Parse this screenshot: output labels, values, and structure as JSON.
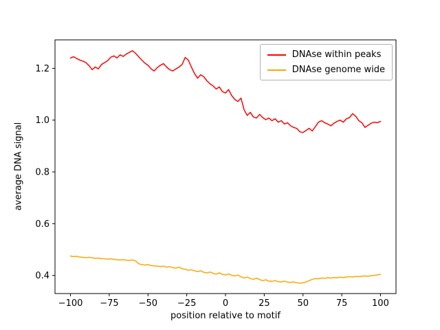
{
  "figure": {
    "background": "#ffffff",
    "xlabel": "position relative to motif",
    "ylabel": "average DNA signal"
  },
  "legend": {
    "entries": [
      {
        "label": "DNAse within peaks",
        "color": "#ff0000"
      },
      {
        "label": "DNAse genome wide",
        "color": "#ffa500"
      }
    ]
  },
  "chart_data": {
    "type": "line",
    "title": "",
    "xlabel": "position relative to motif",
    "ylabel": "average DNA signal",
    "xlim": [
      -110,
      110
    ],
    "ylim": [
      0.33,
      1.31
    ],
    "xticks": [
      -100,
      -75,
      -50,
      -25,
      0,
      25,
      50,
      75,
      100
    ],
    "yticks": [
      0.4,
      0.6,
      0.8,
      1.0,
      1.2
    ],
    "grid": false,
    "legend_position": "upper right",
    "x": [
      -100,
      -98,
      -96,
      -94,
      -92,
      -90,
      -88,
      -86,
      -84,
      -82,
      -80,
      -78,
      -76,
      -74,
      -72,
      -70,
      -68,
      -66,
      -64,
      -62,
      -60,
      -58,
      -56,
      -54,
      -52,
      -50,
      -48,
      -46,
      -44,
      -42,
      -40,
      -38,
      -36,
      -34,
      -32,
      -30,
      -28,
      -26,
      -24,
      -22,
      -20,
      -18,
      -16,
      -14,
      -12,
      -10,
      -8,
      -6,
      -4,
      -2,
      0,
      2,
      4,
      6,
      8,
      10,
      12,
      14,
      16,
      18,
      20,
      22,
      24,
      26,
      28,
      30,
      32,
      34,
      36,
      38,
      40,
      42,
      44,
      46,
      48,
      50,
      52,
      54,
      56,
      58,
      60,
      62,
      64,
      66,
      68,
      70,
      72,
      74,
      76,
      78,
      80,
      82,
      84,
      86,
      88,
      90,
      92,
      94,
      96,
      98,
      100
    ],
    "series": [
      {
        "name": "DNAse within peaks",
        "color": "#ff0000",
        "values": [
          1.24,
          1.245,
          1.238,
          1.232,
          1.228,
          1.222,
          1.21,
          1.195,
          1.205,
          1.198,
          1.215,
          1.222,
          1.23,
          1.243,
          1.248,
          1.24,
          1.252,
          1.246,
          1.255,
          1.262,
          1.268,
          1.258,
          1.245,
          1.232,
          1.22,
          1.212,
          1.198,
          1.19,
          1.203,
          1.212,
          1.218,
          1.205,
          1.195,
          1.19,
          1.198,
          1.205,
          1.215,
          1.242,
          1.232,
          1.205,
          1.18,
          1.162,
          1.175,
          1.168,
          1.152,
          1.14,
          1.132,
          1.12,
          1.128,
          1.11,
          1.105,
          1.118,
          1.095,
          1.08,
          1.072,
          1.085,
          1.04,
          1.018,
          1.03,
          1.012,
          1.008,
          1.022,
          1.01,
          1.002,
          1.008,
          0.998,
          1.005,
          0.992,
          0.998,
          0.985,
          0.99,
          0.978,
          0.972,
          0.968,
          0.955,
          0.952,
          0.96,
          0.968,
          0.958,
          0.975,
          0.992,
          0.998,
          0.99,
          0.985,
          0.978,
          0.988,
          0.995,
          1.0,
          0.992,
          1.005,
          1.01,
          1.025,
          1.015,
          0.998,
          0.99,
          0.972,
          0.98,
          0.988,
          0.992,
          0.99,
          0.995
        ]
      },
      {
        "name": "DNAse genome wide",
        "color": "#ffa500",
        "values": [
          0.475,
          0.473,
          0.474,
          0.471,
          0.47,
          0.469,
          0.47,
          0.468,
          0.466,
          0.467,
          0.465,
          0.464,
          0.463,
          0.464,
          0.462,
          0.461,
          0.46,
          0.461,
          0.459,
          0.458,
          0.46,
          0.456,
          0.445,
          0.442,
          0.44,
          0.442,
          0.438,
          0.437,
          0.436,
          0.434,
          0.436,
          0.432,
          0.434,
          0.43,
          0.428,
          0.432,
          0.426,
          0.424,
          0.42,
          0.422,
          0.418,
          0.415,
          0.418,
          0.412,
          0.41,
          0.413,
          0.408,
          0.405,
          0.41,
          0.404,
          0.402,
          0.406,
          0.4,
          0.398,
          0.402,
          0.395,
          0.39,
          0.394,
          0.388,
          0.385,
          0.39,
          0.384,
          0.38,
          0.383,
          0.378,
          0.377,
          0.38,
          0.376,
          0.375,
          0.378,
          0.374,
          0.373,
          0.375,
          0.372,
          0.37,
          0.372,
          0.375,
          0.38,
          0.385,
          0.388,
          0.387,
          0.39,
          0.389,
          0.391,
          0.39,
          0.392,
          0.391,
          0.393,
          0.392,
          0.394,
          0.395,
          0.394,
          0.396,
          0.395,
          0.397,
          0.398,
          0.397,
          0.399,
          0.4,
          0.402,
          0.404
        ]
      }
    ]
  }
}
